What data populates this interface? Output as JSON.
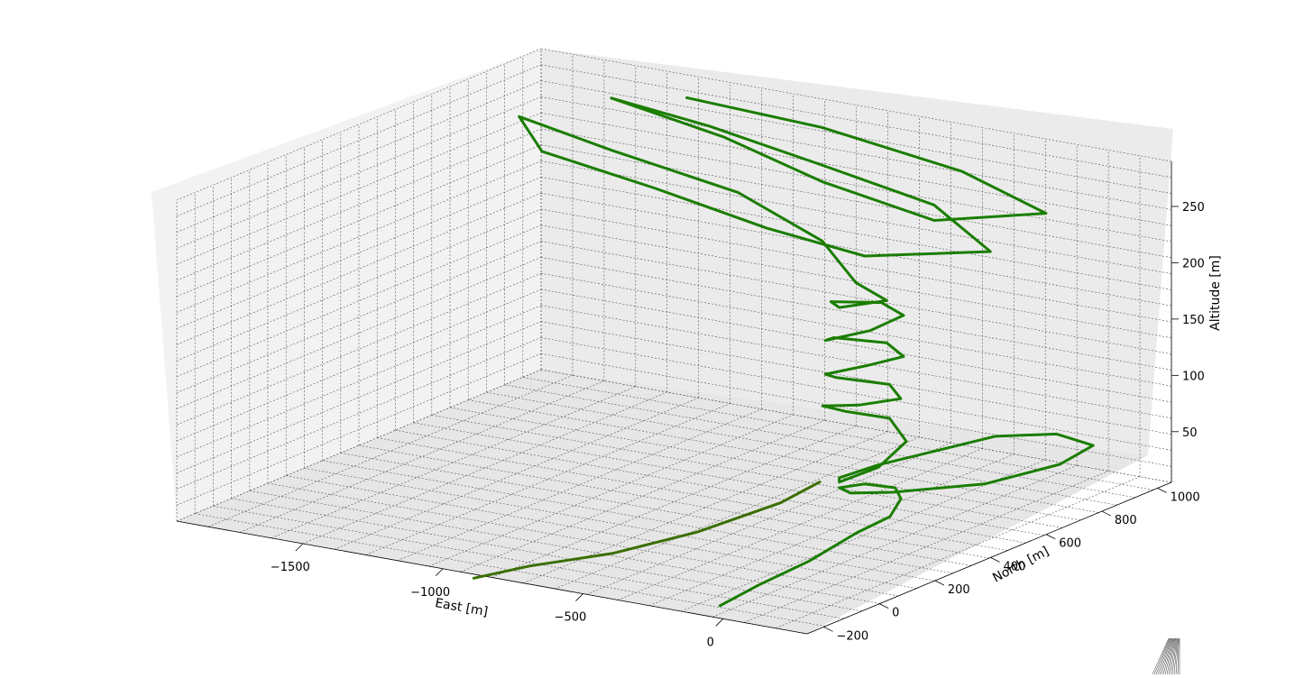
{
  "chart_data": {
    "type": "line3d",
    "xlabel": "East [m]",
    "ylabel": "North [m]",
    "zlabel": "Altitude [m]",
    "x_ticks": [
      "−1500",
      "−1000",
      "−500",
      "0"
    ],
    "y_ticks": [
      "−200",
      "0",
      "200",
      "400",
      "600",
      "800",
      "1000"
    ],
    "z_ticks": [
      "50",
      "100",
      "150",
      "200",
      "250"
    ],
    "xlim": [
      -1950,
      300
    ],
    "ylim": [
      -260,
      1050
    ],
    "zlim": [
      5,
      290
    ],
    "grid": true,
    "series": [
      {
        "color": "#ff6f6f",
        "style": "thin",
        "points": [
          [
            -120,
            -150,
            0
          ],
          [
            -80,
            -50,
            10
          ],
          [
            -30,
            80,
            20
          ],
          [
            20,
            200,
            35
          ],
          [
            40,
            300,
            40
          ],
          [
            -40,
            420,
            40
          ],
          [
            -120,
            480,
            40
          ],
          [
            -220,
            470,
            40
          ],
          [
            -260,
            420,
            40
          ],
          [
            -200,
            400,
            40
          ],
          [
            -100,
            450,
            40
          ],
          [
            80,
            600,
            40
          ],
          [
            150,
            800,
            40
          ],
          [
            120,
            950,
            40
          ],
          [
            -40,
            980,
            40
          ],
          [
            -180,
            900,
            40
          ],
          [
            -240,
            750,
            40
          ],
          [
            -300,
            600,
            40
          ],
          [
            -320,
            480,
            40
          ],
          [
            -260,
            420,
            45
          ],
          [
            -150,
            450,
            60
          ],
          [
            -100,
            500,
            80
          ],
          [
            -180,
            520,
            95
          ],
          [
            -300,
            480,
            100
          ],
          [
            -320,
            420,
            110
          ],
          [
            -200,
            430,
            115
          ],
          [
            -100,
            480,
            120
          ],
          [
            -180,
            520,
            125
          ],
          [
            -320,
            470,
            130
          ],
          [
            -300,
            410,
            140
          ],
          [
            -180,
            440,
            150
          ],
          [
            -110,
            500,
            155
          ],
          [
            -200,
            530,
            160
          ],
          [
            -330,
            470,
            165
          ],
          [
            -300,
            410,
            170
          ],
          [
            -180,
            450,
            180
          ],
          [
            -120,
            510,
            190
          ],
          [
            -220,
            530,
            195
          ],
          [
            -330,
            460,
            198
          ],
          [
            -260,
            420,
            200
          ],
          [
            -150,
            480,
            205
          ],
          [
            -300,
            520,
            210
          ],
          [
            -500,
            600,
            230
          ],
          [
            -900,
            700,
            245
          ],
          [
            -1400,
            750,
            255
          ],
          [
            -1800,
            820,
            260
          ],
          [
            -1500,
            600,
            265
          ],
          [
            -1000,
            500,
            265
          ],
          [
            -500,
            400,
            262
          ],
          [
            -100,
            350,
            260
          ],
          [
            200,
            500,
            262
          ],
          [
            -200,
            700,
            265
          ],
          [
            -700,
            800,
            268
          ],
          [
            -1200,
            900,
            270
          ],
          [
            -1600,
            950,
            272
          ],
          [
            -1100,
            850,
            270
          ],
          [
            -600,
            700,
            268
          ],
          [
            -100,
            600,
            266
          ],
          [
            150,
            750,
            268
          ],
          [
            -300,
            900,
            270
          ],
          [
            -900,
            1000,
            272
          ],
          [
            -1400,
            1020,
            274
          ]
        ]
      },
      {
        "color": "#1a7d00",
        "style": "thick",
        "points": [
          [
            -120,
            -150,
            0
          ],
          [
            -80,
            -50,
            10
          ],
          [
            -30,
            80,
            20
          ],
          [
            20,
            200,
            35
          ],
          [
            40,
            300,
            40
          ],
          [
            -40,
            420,
            40
          ],
          [
            -120,
            480,
            40
          ],
          [
            -220,
            470,
            40
          ],
          [
            -260,
            420,
            40
          ],
          [
            -200,
            400,
            40
          ],
          [
            -100,
            450,
            40
          ],
          [
            80,
            600,
            40
          ],
          [
            150,
            800,
            40
          ],
          [
            120,
            950,
            40
          ],
          [
            -40,
            980,
            40
          ],
          [
            -180,
            900,
            40
          ],
          [
            -240,
            750,
            40
          ],
          [
            -300,
            600,
            40
          ],
          [
            -320,
            480,
            40
          ],
          [
            -260,
            420,
            45
          ],
          [
            -150,
            450,
            60
          ],
          [
            -100,
            500,
            80
          ],
          [
            -180,
            520,
            95
          ],
          [
            -300,
            480,
            100
          ],
          [
            -320,
            420,
            110
          ],
          [
            -200,
            430,
            115
          ],
          [
            -100,
            480,
            120
          ],
          [
            -180,
            520,
            125
          ],
          [
            -320,
            470,
            130
          ],
          [
            -300,
            410,
            140
          ],
          [
            -180,
            440,
            150
          ],
          [
            -110,
            500,
            155
          ],
          [
            -200,
            530,
            160
          ],
          [
            -330,
            470,
            165
          ],
          [
            -300,
            410,
            170
          ],
          [
            -180,
            450,
            180
          ],
          [
            -120,
            510,
            190
          ],
          [
            -220,
            530,
            195
          ],
          [
            -330,
            460,
            198
          ],
          [
            -260,
            420,
            200
          ],
          [
            -150,
            480,
            205
          ],
          [
            -300,
            520,
            210
          ],
          [
            -500,
            600,
            230
          ],
          [
            -900,
            700,
            245
          ],
          [
            -1400,
            750,
            255
          ],
          [
            -1800,
            820,
            260
          ],
          [
            -1500,
            600,
            265
          ],
          [
            -1000,
            500,
            265
          ],
          [
            -500,
            400,
            262
          ],
          [
            -100,
            350,
            260
          ],
          [
            200,
            500,
            262
          ],
          [
            -200,
            700,
            265
          ],
          [
            -700,
            800,
            268
          ],
          [
            -1200,
            900,
            270
          ],
          [
            -1600,
            950,
            272
          ],
          [
            -1100,
            850,
            270
          ],
          [
            -600,
            700,
            268
          ],
          [
            -100,
            600,
            266
          ],
          [
            150,
            750,
            268
          ],
          [
            -300,
            900,
            270
          ],
          [
            -900,
            1000,
            272
          ],
          [
            -1400,
            1020,
            274
          ]
        ]
      },
      {
        "color": "#3b6e00",
        "style": "thick",
        "points": [
          [
            -900,
            -250,
            0
          ],
          [
            -800,
            -150,
            5
          ],
          [
            -600,
            -50,
            15
          ],
          [
            -450,
            100,
            25
          ],
          [
            -350,
            300,
            35
          ],
          [
            -330,
            420,
            42
          ]
        ]
      }
    ]
  }
}
